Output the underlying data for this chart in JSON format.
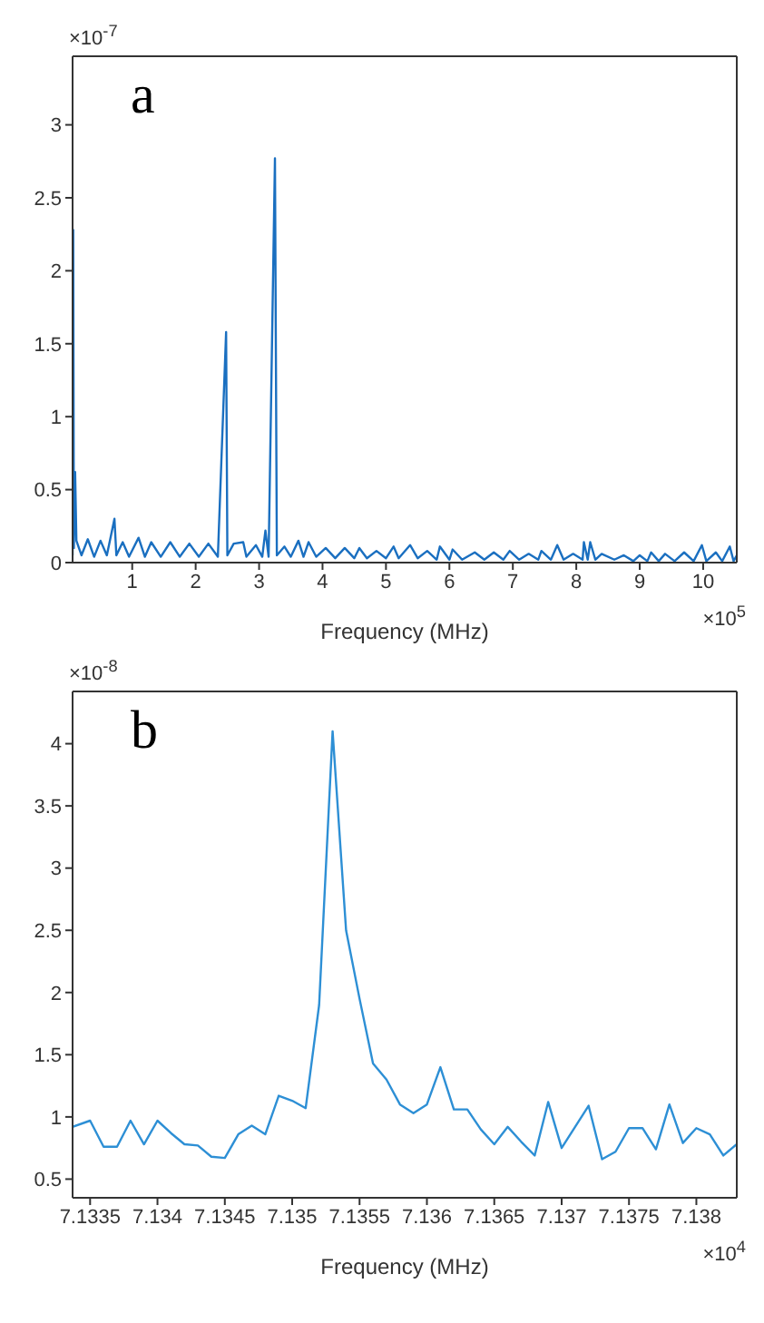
{
  "chart_data": [
    {
      "type": "line",
      "xlabel": "Frequency (MHz)",
      "annotations": [
        "a",
        "×10$^{-7}$",
        "×10$^{5}$"
      ],
      "x": [
        0.06,
        0.07,
        0.08,
        0.1,
        0.12,
        0.2,
        0.3,
        0.4,
        0.5,
        0.6,
        0.72,
        0.75,
        0.85,
        0.95,
        1.1,
        1.2,
        1.3,
        1.45,
        1.6,
        1.75,
        1.9,
        2.05,
        2.2,
        2.35,
        2.48,
        2.5,
        2.6,
        2.75,
        2.8,
        2.95,
        3.05,
        3.1,
        3.15,
        3.25,
        3.28,
        3.4,
        3.5,
        3.62,
        3.7,
        3.78,
        3.9,
        4.05,
        4.2,
        4.35,
        4.5,
        4.58,
        4.7,
        4.85,
        5.0,
        5.12,
        5.2,
        5.38,
        5.5,
        5.65,
        5.8,
        5.85,
        6.0,
        6.05,
        6.2,
        6.4,
        6.55,
        6.7,
        6.85,
        6.95,
        7.1,
        7.25,
        7.4,
        7.45,
        7.6,
        7.7,
        7.8,
        7.95,
        8.1,
        8.12,
        8.18,
        8.22,
        8.3,
        8.4,
        8.6,
        8.75,
        8.9,
        9.0,
        9.12,
        9.18,
        9.3,
        9.4,
        9.55,
        9.7,
        9.85,
        9.98,
        10.05,
        10.2,
        10.3,
        10.42,
        10.48,
        10.53
      ],
      "series": [
        {
          "color": "#1a6fc0",
          "values": [
            0.05,
            2.28,
            0.1,
            0.62,
            0.15,
            0.05,
            0.16,
            0.04,
            0.15,
            0.05,
            0.3,
            0.05,
            0.14,
            0.04,
            0.17,
            0.04,
            0.14,
            0.04,
            0.14,
            0.04,
            0.13,
            0.04,
            0.13,
            0.04,
            1.58,
            0.05,
            0.13,
            0.14,
            0.04,
            0.12,
            0.04,
            0.22,
            0.04,
            2.77,
            0.05,
            0.11,
            0.04,
            0.15,
            0.04,
            0.14,
            0.04,
            0.1,
            0.03,
            0.1,
            0.03,
            0.1,
            0.03,
            0.08,
            0.03,
            0.11,
            0.03,
            0.12,
            0.03,
            0.08,
            0.02,
            0.11,
            0.02,
            0.09,
            0.02,
            0.07,
            0.02,
            0.07,
            0.02,
            0.08,
            0.02,
            0.06,
            0.02,
            0.08,
            0.02,
            0.12,
            0.02,
            0.06,
            0.02,
            0.14,
            0.02,
            0.14,
            0.02,
            0.06,
            0.02,
            0.05,
            0.01,
            0.05,
            0.01,
            0.07,
            0.01,
            0.06,
            0.01,
            0.07,
            0.01,
            0.12,
            0.01,
            0.07,
            0.01,
            0.11,
            0.01,
            0.05
          ]
        }
      ],
      "xlim": [
        0.06,
        10.53
      ],
      "xticks": [
        1,
        2,
        3,
        4,
        5,
        6,
        7,
        8,
        9,
        10
      ],
      "ylim": [
        0,
        3.47
      ],
      "yticks": [
        0,
        0.5,
        1,
        1.5,
        2,
        2.5,
        3
      ],
      "grid": false,
      "legend": false,
      "marker": "none",
      "line_style": "solid"
    },
    {
      "type": "line",
      "xlabel": "Frequency (MHz)",
      "annotations": [
        "b",
        "×10$^{-8}$",
        "×10$^{4}$"
      ],
      "x": [
        7.13337,
        7.1335,
        7.1336,
        7.1337,
        7.1338,
        7.1339,
        7.134,
        7.1341,
        7.1342,
        7.1343,
        7.1344,
        7.1345,
        7.1346,
        7.1347,
        7.1348,
        7.1349,
        7.135,
        7.1351,
        7.1352,
        7.1353,
        7.1354,
        7.1355,
        7.1356,
        7.1357,
        7.1358,
        7.1359,
        7.136,
        7.1361,
        7.1362,
        7.1363,
        7.1364,
        7.1365,
        7.1366,
        7.1367,
        7.1368,
        7.1369,
        7.137,
        7.1371,
        7.1372,
        7.1373,
        7.1374,
        7.1375,
        7.1376,
        7.1377,
        7.1378,
        7.1379,
        7.138,
        7.1381,
        7.1382,
        7.1383
      ],
      "series": [
        {
          "color": "#2d8fd5",
          "values": [
            0.92,
            0.97,
            0.76,
            0.76,
            0.97,
            0.78,
            0.97,
            0.87,
            0.78,
            0.77,
            0.68,
            0.67,
            0.86,
            0.93,
            0.86,
            1.17,
            1.13,
            1.07,
            1.9,
            4.1,
            2.5,
            1.95,
            1.43,
            1.3,
            1.1,
            1.03,
            1.1,
            1.4,
            1.06,
            1.06,
            0.9,
            0.78,
            0.92,
            0.8,
            0.69,
            1.12,
            0.75,
            0.92,
            1.09,
            0.66,
            0.72,
            0.91,
            0.91,
            0.74,
            1.1,
            0.79,
            0.91,
            0.86,
            0.69,
            0.78
          ]
        }
      ],
      "xlim": [
        7.13337,
        7.1383
      ],
      "xticks": [
        7.1335,
        7.134,
        7.1345,
        7.135,
        7.1355,
        7.136,
        7.1365,
        7.137,
        7.1375,
        7.138
      ],
      "ylim": [
        0.35,
        4.42
      ],
      "yticks": [
        0.5,
        1,
        1.5,
        2,
        2.5,
        3,
        3.5,
        4
      ],
      "grid": false,
      "legend": false,
      "marker": "none",
      "line_style": "solid"
    }
  ]
}
